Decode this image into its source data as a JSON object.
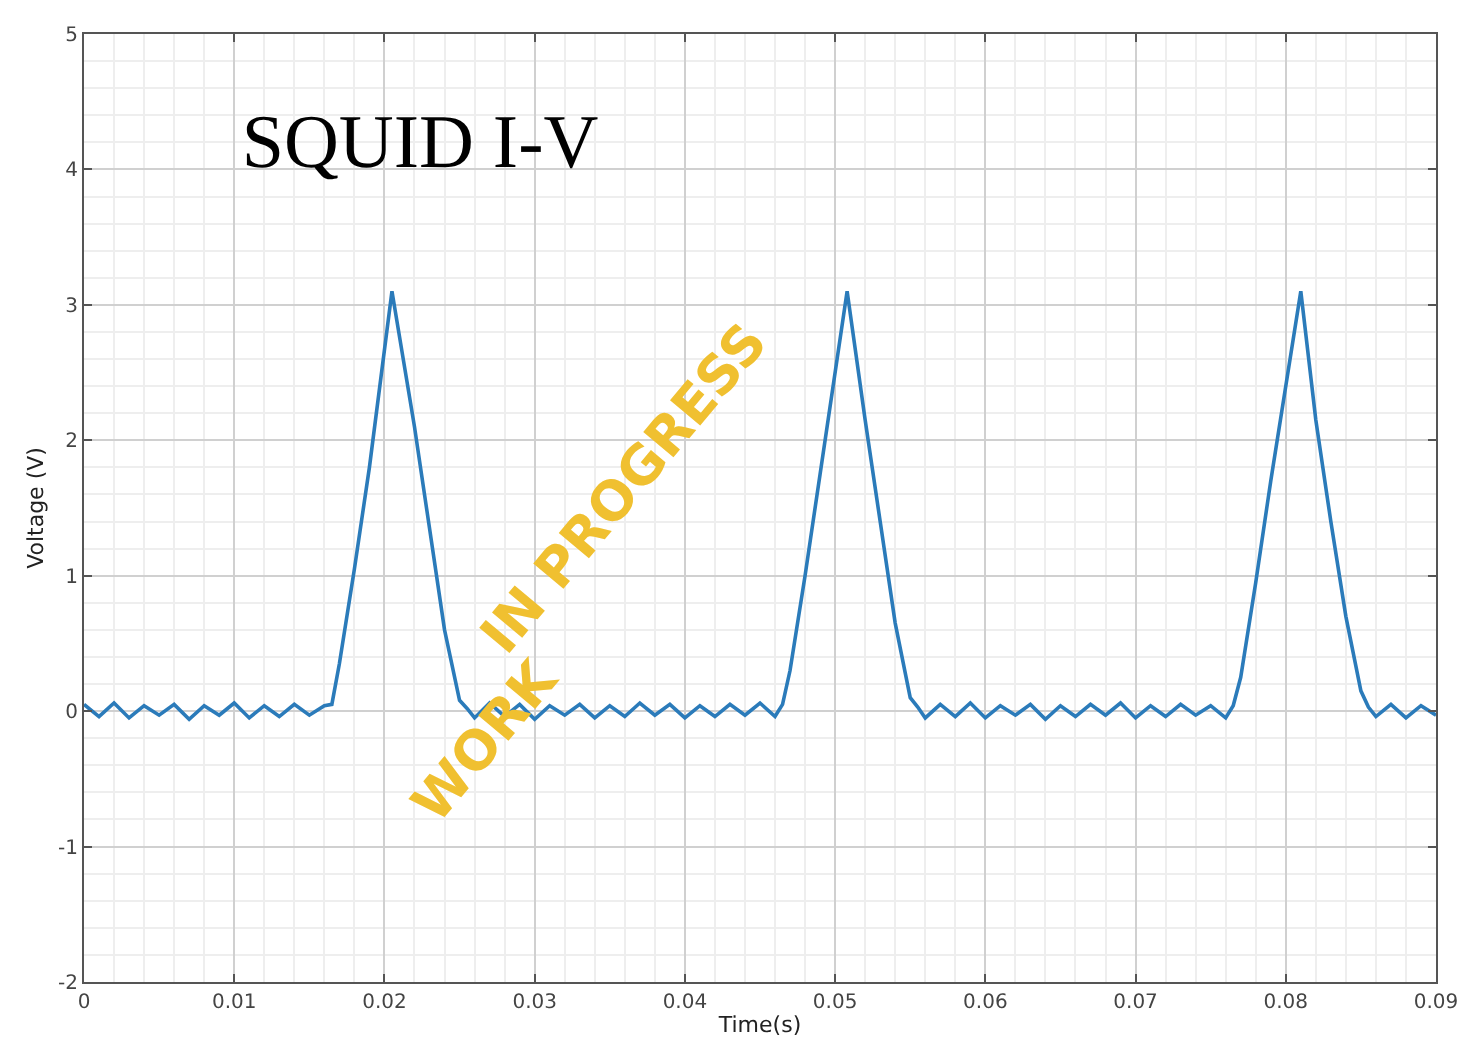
{
  "chart_data": {
    "type": "line",
    "title": "SQUID I-V",
    "xlabel": "Time(s)",
    "ylabel": "Voltage (V)",
    "x": [
      0,
      0.001,
      0.002,
      0.003,
      0.004,
      0.005,
      0.006,
      0.007,
      0.008,
      0.009,
      0.01,
      0.011,
      0.012,
      0.013,
      0.014,
      0.015,
      0.016,
      0.0165,
      0.017,
      0.018,
      0.019,
      0.0205,
      0.022,
      0.023,
      0.024,
      0.025,
      0.0255,
      0.026,
      0.027,
      0.028,
      0.029,
      0.03,
      0.031,
      0.032,
      0.033,
      0.034,
      0.035,
      0.036,
      0.037,
      0.038,
      0.039,
      0.04,
      0.041,
      0.042,
      0.043,
      0.044,
      0.045,
      0.046,
      0.0465,
      0.047,
      0.048,
      0.049,
      0.0508,
      0.052,
      0.053,
      0.054,
      0.055,
      0.0555,
      0.056,
      0.057,
      0.058,
      0.059,
      0.06,
      0.061,
      0.062,
      0.063,
      0.064,
      0.065,
      0.066,
      0.067,
      0.068,
      0.069,
      0.07,
      0.071,
      0.072,
      0.073,
      0.074,
      0.075,
      0.076,
      0.0765,
      0.077,
      0.078,
      0.079,
      0.081,
      0.082,
      0.083,
      0.084,
      0.085,
      0.0855,
      0.086,
      0.087,
      0.088,
      0.089,
      0.09
    ],
    "series": [
      {
        "color": "#2b7bba",
        "values": [
          0.05,
          -0.04,
          0.06,
          -0.05,
          0.04,
          -0.03,
          0.05,
          -0.06,
          0.04,
          -0.03,
          0.06,
          -0.05,
          0.04,
          -0.04,
          0.05,
          -0.03,
          0.04,
          0.05,
          0.35,
          1.05,
          1.8,
          3.1,
          2.1,
          1.35,
          0.6,
          0.08,
          0.02,
          -0.05,
          0.06,
          -0.04,
          0.05,
          -0.06,
          0.04,
          -0.03,
          0.05,
          -0.05,
          0.04,
          -0.04,
          0.06,
          -0.03,
          0.05,
          -0.05,
          0.04,
          -0.04,
          0.05,
          -0.03,
          0.06,
          -0.04,
          0.05,
          0.3,
          1.0,
          1.75,
          3.1,
          2.15,
          1.4,
          0.65,
          0.1,
          0.03,
          -0.05,
          0.05,
          -0.04,
          0.06,
          -0.05,
          0.04,
          -0.03,
          0.05,
          -0.06,
          0.04,
          -0.04,
          0.05,
          -0.03,
          0.06,
          -0.05,
          0.04,
          -0.04,
          0.05,
          -0.03,
          0.04,
          -0.05,
          0.04,
          0.25,
          0.95,
          1.7,
          3.1,
          2.15,
          1.4,
          0.7,
          0.15,
          0.03,
          -0.04,
          0.05,
          -0.05,
          0.04,
          -0.03
        ]
      }
    ],
    "xlim": [
      0,
      0.09
    ],
    "ylim": [
      -2,
      5
    ],
    "xticks": [
      0,
      0.01,
      0.02,
      0.03,
      0.04,
      0.05,
      0.06,
      0.07,
      0.08,
      0.09
    ],
    "yticks": [
      -2,
      -1,
      0,
      1,
      2,
      3,
      4,
      5
    ],
    "grid": true,
    "annotations": [
      "WORK",
      "IN PROGRESS"
    ]
  }
}
